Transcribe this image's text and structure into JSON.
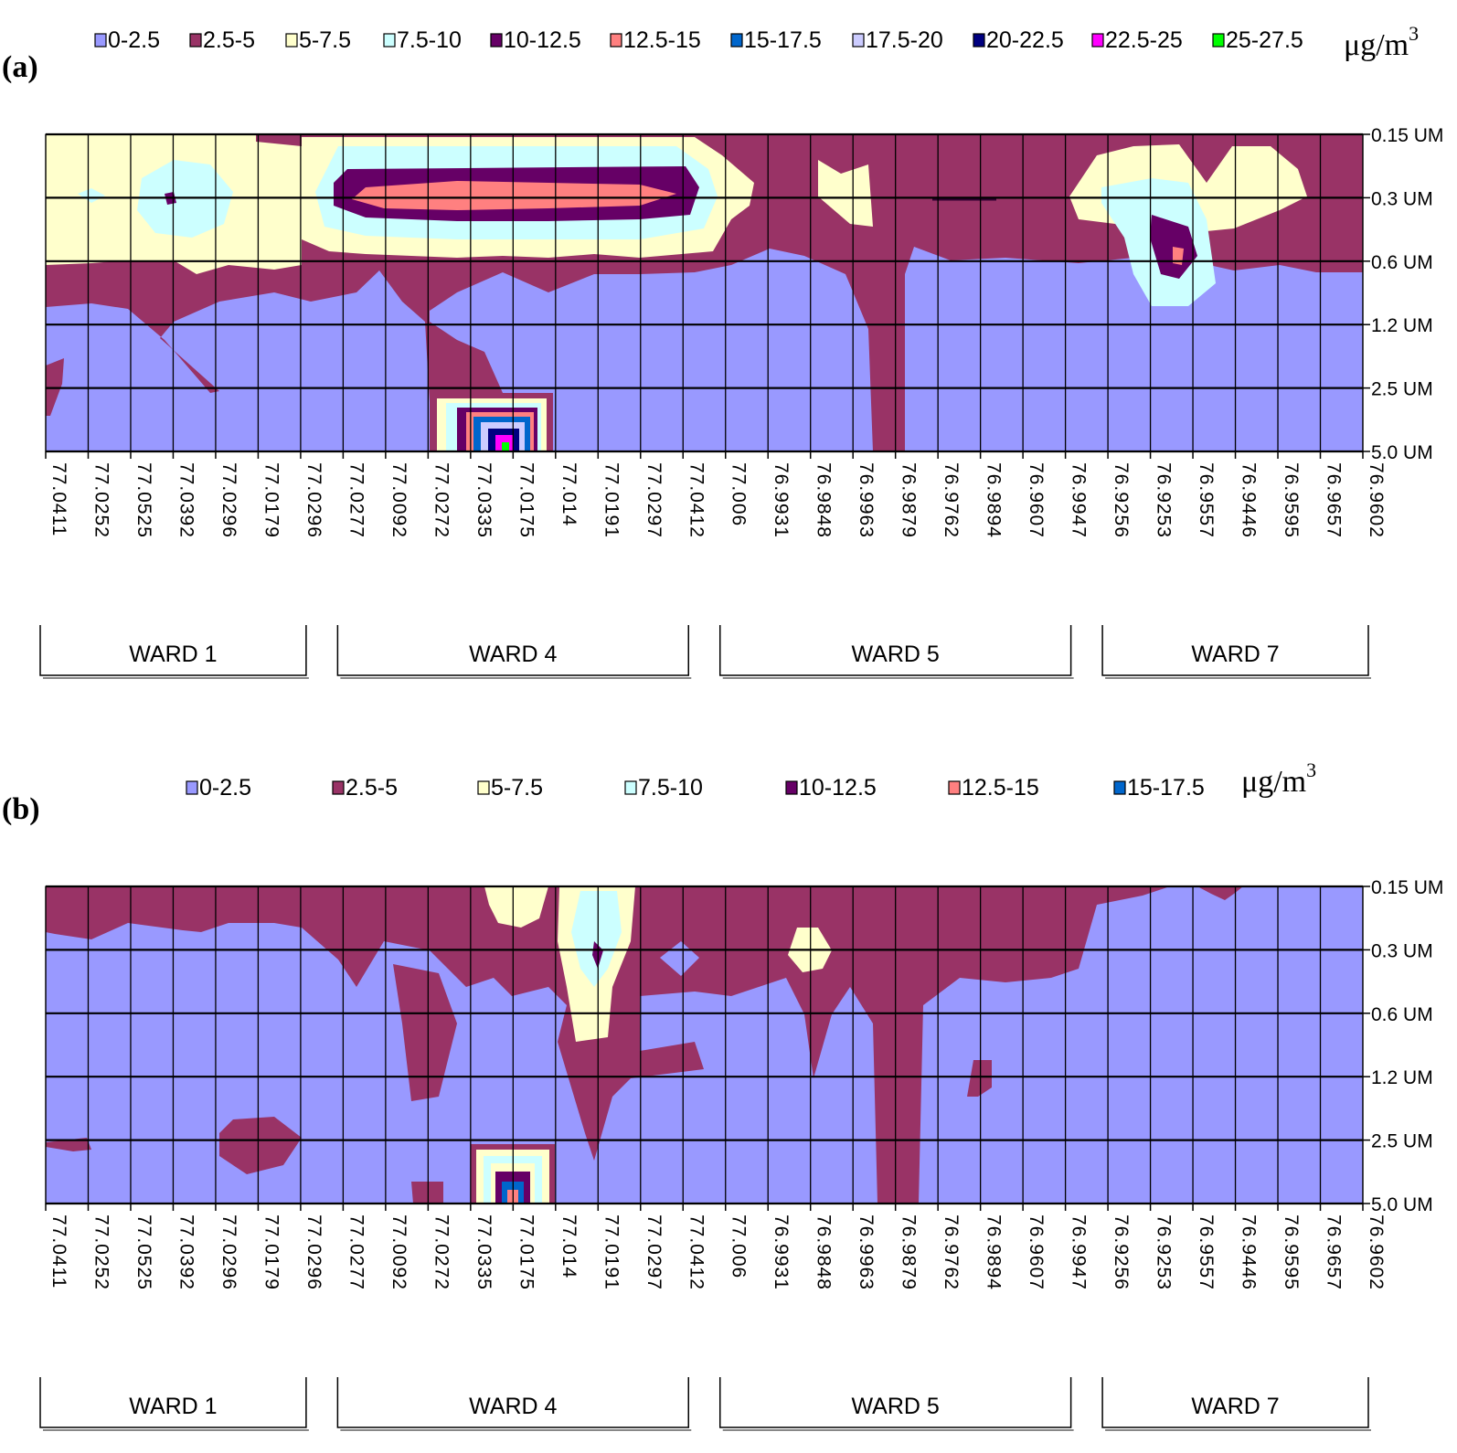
{
  "chart_data": [
    {
      "type": "heatmap",
      "panel_label": "(a)",
      "unit": "μg/m",
      "unit_exponent": "3",
      "legend": [
        {
          "label": "0-2.5",
          "color": "#9999ff"
        },
        {
          "label": "2.5-5",
          "color": "#993366"
        },
        {
          "label": "5-7.5",
          "color": "#ffffcc"
        },
        {
          "label": "7.5-10",
          "color": "#ccffff"
        },
        {
          "label": "10-12.5",
          "color": "#660066"
        },
        {
          "label": "12.5-15",
          "color": "#ff8080"
        },
        {
          "label": "15-17.5",
          "color": "#0066cc"
        },
        {
          "label": "17.5-20",
          "color": "#ccccff"
        },
        {
          "label": "20-22.5",
          "color": "#000080"
        },
        {
          "label": "22.5-25",
          "color": "#ff00ff"
        },
        {
          "label": "25-27.5",
          "color": "#00ff00"
        }
      ],
      "x_ticks": [
        "77.0411",
        "77.0252",
        "77.0525",
        "77.0392",
        "77.0296",
        "77.0179",
        "77.0296",
        "77.0277",
        "77.0092",
        "77.0272",
        "77.0335",
        "77.0175",
        "77.014",
        "77.0191",
        "77.0297",
        "77.0412",
        "77.006",
        "76.9931",
        "76.9848",
        "76.9963",
        "76.9879",
        "76.9762",
        "76.9894",
        "76.9607",
        "76.9947",
        "76.9256",
        "76.9253",
        "76.9557",
        "76.9446",
        "76.9595",
        "76.9657",
        "76.9602"
      ],
      "y_ticks": [
        "0.15 UM",
        "0.3 UM",
        "0.6 UM",
        "1.2 UM",
        "2.5 UM",
        "5.0 UM"
      ],
      "wards": [
        "WARD 1",
        "WARD 4",
        "WARD 5",
        "WARD 7"
      ],
      "grid": true
    },
    {
      "type": "heatmap",
      "panel_label": "(b)",
      "unit": "μg/m",
      "unit_exponent": "3",
      "legend": [
        {
          "label": "0-2.5",
          "color": "#9999ff"
        },
        {
          "label": "2.5-5",
          "color": "#993366"
        },
        {
          "label": "5-7.5",
          "color": "#ffffcc"
        },
        {
          "label": "7.5-10",
          "color": "#ccffff"
        },
        {
          "label": "10-12.5",
          "color": "#660066"
        },
        {
          "label": "12.5-15",
          "color": "#ff8080"
        },
        {
          "label": "15-17.5",
          "color": "#0066cc"
        }
      ],
      "x_ticks": [
        "77.0411",
        "77.0252",
        "77.0525",
        "77.0392",
        "77.0296",
        "77.0179",
        "77.0296",
        "77.0277",
        "77.0092",
        "77.0272",
        "77.0335",
        "77.0175",
        "77.014",
        "77.0191",
        "77.0297",
        "77.0412",
        "77.006",
        "76.9931",
        "76.9848",
        "76.9963",
        "76.9879",
        "76.9762",
        "76.9894",
        "76.9607",
        "76.9947",
        "76.9256",
        "76.9253",
        "76.9557",
        "76.9446",
        "76.9595",
        "76.9657",
        "76.9602"
      ],
      "y_ticks": [
        "0.15 UM",
        "0.3 UM",
        "0.6 UM",
        "1.2 UM",
        "2.5 UM",
        "5.0 UM"
      ],
      "wards": [
        "WARD 1",
        "WARD 4",
        "WARD 5",
        "WARD 7"
      ],
      "grid": true
    }
  ]
}
